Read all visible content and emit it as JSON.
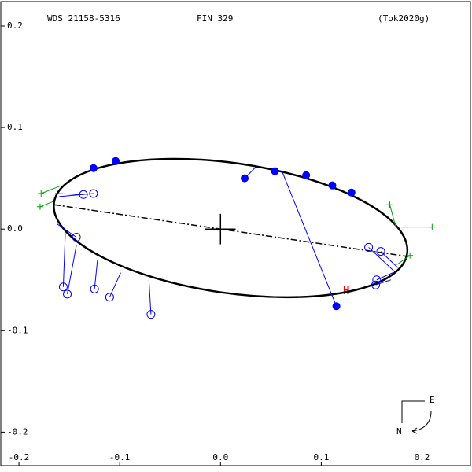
{
  "chart_data": {
    "type": "orbit",
    "header": [
      "WDS 21158-5316",
      "FIN 329",
      "(Tok2020g)"
    ],
    "xlim": [
      -0.218,
      0.248
    ],
    "ylim": [
      -0.233,
      0.224
    ],
    "xticks": [
      -0.2,
      -0.1,
      {
        "value": 0,
        "label": "0.0"
      },
      0.1,
      0.2
    ],
    "yticks": [
      0.2,
      0.1,
      {
        "value": 0,
        "label": "0.0"
      },
      -0.1,
      -0.2
    ],
    "orbit_ellipse": {
      "color": "#000000",
      "cx": 0.01,
      "cy": 0.001,
      "rx": 0.177,
      "ry": 0.064,
      "angle": -8.2
    },
    "line_of_nodes": {
      "color": "#000000",
      "x": [
        -0.165,
        0.186
      ],
      "y": [
        0.024,
        -0.027
      ]
    },
    "primary": {
      "x": 0,
      "y": 0,
      "size": 0.015
    },
    "series": [
      {
        "marker": "filled",
        "color": "#0000ff",
        "x": [
          -0.126,
          -0.104,
          0.024,
          0.054,
          0.085,
          0.111,
          0.13,
          0.115
        ],
        "y": [
          0.06,
          0.067,
          0.05,
          0.057,
          0.053,
          0.043,
          0.036,
          -0.076
        ],
        "fit_x": [
          -0.126,
          -0.104,
          0.036,
          0.054,
          0.085,
          0.111,
          0.13,
          0.061
        ],
        "fit_y": [
          0.06,
          0.067,
          0.062,
          0.057,
          0.053,
          0.043,
          0.036,
          0.057
        ]
      },
      {
        "marker": "open",
        "color": "#0000ff",
        "x": [
          -0.136,
          -0.126,
          -0.143,
          -0.156,
          -0.152,
          -0.125,
          -0.11,
          -0.069,
          0.147,
          0.159,
          0.155,
          0.154
        ],
        "y": [
          0.034,
          0.035,
          -0.008,
          -0.057,
          -0.064,
          -0.059,
          -0.067,
          -0.084,
          -0.018,
          -0.022,
          -0.05,
          -0.055
        ],
        "fit_x": [
          -0.164,
          -0.16,
          -0.162,
          -0.154,
          -0.143,
          -0.122,
          -0.099,
          -0.071,
          0.174,
          0.176,
          0.171,
          0.169
        ],
        "fit_y": [
          0.035,
          0.032,
          0.005,
          -0.004,
          -0.016,
          -0.03,
          -0.043,
          -0.05,
          -0.043,
          -0.038,
          -0.043,
          -0.05
        ]
      },
      {
        "marker": "plus",
        "color": "#00a000",
        "x": [
          -0.178,
          -0.179,
          0.168,
          0.21,
          0.188
        ],
        "y": [
          0.035,
          0.022,
          0.024,
          0.002,
          -0.026
        ],
        "fit_x": [
          -0.16,
          -0.164,
          0.174,
          0.174,
          0.175
        ],
        "fit_y": [
          0.042,
          0.028,
          0.002,
          0.002,
          -0.035
        ]
      }
    ],
    "annotation": "H",
    "compass": [
      "E",
      "N"
    ]
  }
}
